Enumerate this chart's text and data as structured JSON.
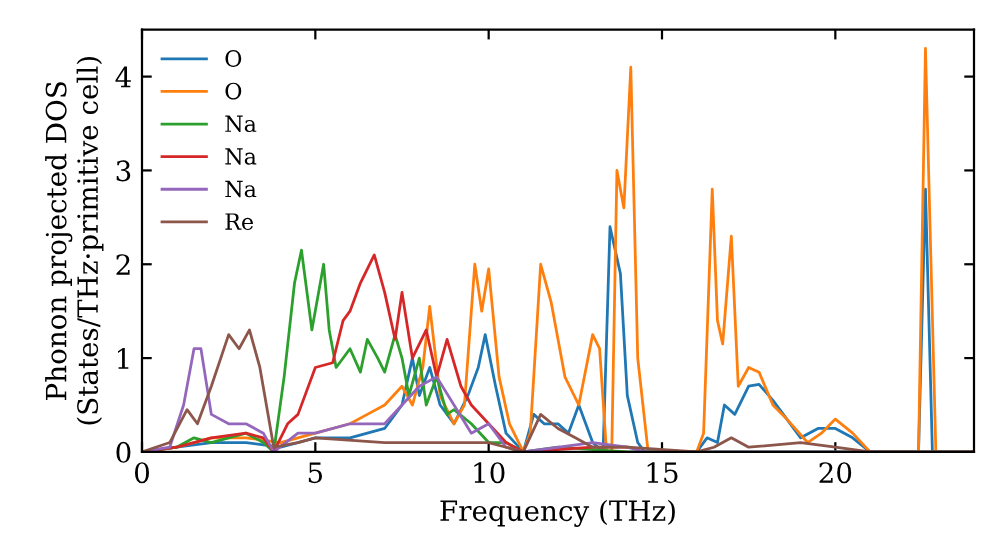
{
  "chart_data": {
    "type": "line",
    "xlabel": "Frequency (THz)",
    "ylabel": "Phonon projected DOS\n(States/THz·primitive cell)",
    "xlim": [
      0,
      24
    ],
    "ylim": [
      0,
      4.5
    ],
    "xticks": [
      0,
      5,
      10,
      15,
      20
    ],
    "yticks": [
      0,
      1,
      2,
      3,
      4
    ],
    "legend": "top left",
    "grid": false,
    "marker": "none",
    "line_style": "solid",
    "series": [
      {
        "name": "O",
        "color": "#1f77b4",
        "x": [
          0,
          1,
          2,
          3,
          4,
          5,
          6,
          6.5,
          7,
          7.5,
          7.8,
          8,
          8.3,
          8.6,
          9,
          9.4,
          9.7,
          9.9,
          10.2,
          10.5,
          11,
          11.3,
          11.6,
          12,
          12.3,
          12.6,
          13,
          13.3,
          13.5,
          13.8,
          14,
          14.3,
          14.5,
          16,
          16.3,
          16.6,
          16.8,
          17.1,
          17.5,
          17.8,
          18.2,
          18.6,
          19,
          19.5,
          20,
          20.5,
          21,
          22.4,
          22.6,
          22.8,
          24
        ],
        "values": [
          0,
          0.05,
          0.1,
          0.1,
          0.05,
          0.15,
          0.15,
          0.2,
          0.25,
          0.5,
          1.0,
          0.6,
          0.9,
          0.5,
          0.3,
          0.6,
          0.9,
          1.25,
          0.7,
          0.2,
          0,
          0.4,
          0.3,
          0.3,
          0.2,
          0.5,
          0.1,
          0,
          2.4,
          1.9,
          0.6,
          0.1,
          0,
          0,
          0.15,
          0.1,
          0.5,
          0.4,
          0.7,
          0.72,
          0.55,
          0.35,
          0.15,
          0.25,
          0.25,
          0.15,
          0,
          0,
          2.8,
          0,
          0
        ]
      },
      {
        "name": "O",
        "color": "#ff7f0e",
        "x": [
          0,
          1,
          2,
          3,
          4,
          5,
          6,
          6.5,
          7,
          7.5,
          7.8,
          8.1,
          8.3,
          8.6,
          9,
          9.3,
          9.6,
          9.8,
          10,
          10.3,
          10.6,
          11,
          11.2,
          11.5,
          11.8,
          12.2,
          12.6,
          13,
          13.2,
          13.4,
          13.55,
          13.7,
          13.9,
          14.1,
          14.3,
          14.6,
          16,
          16.2,
          16.45,
          16.6,
          16.75,
          17,
          17.2,
          17.5,
          17.8,
          18.2,
          18.6,
          19.2,
          19.6,
          20,
          20.5,
          21,
          22.4,
          22.6,
          22.9,
          24
        ],
        "values": [
          0,
          0.05,
          0.15,
          0.15,
          0.1,
          0.2,
          0.3,
          0.4,
          0.5,
          0.7,
          0.5,
          0.9,
          1.55,
          0.6,
          0.3,
          0.5,
          2.0,
          1.5,
          1.95,
          0.8,
          0.3,
          0,
          0.2,
          2.0,
          1.6,
          0.8,
          0.5,
          1.25,
          1.1,
          0,
          0,
          3.0,
          2.6,
          4.1,
          1.0,
          0,
          0,
          0.2,
          2.8,
          1.4,
          1.15,
          2.3,
          0.7,
          0.9,
          0.85,
          0.5,
          0.35,
          0.1,
          0.2,
          0.35,
          0.2,
          0,
          0,
          4.3,
          0,
          0
        ]
      },
      {
        "name": "Na",
        "color": "#2ca02c",
        "x": [
          0,
          1,
          1.5,
          2,
          2.5,
          3,
          3.5,
          3.8,
          4.1,
          4.4,
          4.6,
          4.9,
          5.24,
          5.4,
          5.6,
          6,
          6.3,
          6.5,
          6.8,
          7,
          7.3,
          7.5,
          7.7,
          8,
          8.2,
          8.5,
          8.8,
          9,
          9.5,
          10,
          10.5,
          11,
          12,
          14,
          24
        ],
        "values": [
          0,
          0.05,
          0.15,
          0.1,
          0.15,
          0.2,
          0.1,
          0,
          0.8,
          1.8,
          2.15,
          1.3,
          2.0,
          1.3,
          0.9,
          1.1,
          0.85,
          1.2,
          1.0,
          0.85,
          1.25,
          1.0,
          0.6,
          1.0,
          0.5,
          0.8,
          0.4,
          0.45,
          0.3,
          0.1,
          0.1,
          0,
          0.05,
          0,
          0
        ]
      },
      {
        "name": "Na",
        "color": "#d62728",
        "x": [
          0,
          1,
          2,
          3,
          3.5,
          3.8,
          4.2,
          4.5,
          5,
          5.5,
          5.8,
          6,
          6.3,
          6.7,
          7,
          7.3,
          7.5,
          7.8,
          8.2,
          8.5,
          8.8,
          9.2,
          9.5,
          10,
          10.5,
          11,
          13,
          14
        ],
        "values": [
          0,
          0.05,
          0.15,
          0.2,
          0.15,
          0,
          0.3,
          0.4,
          0.9,
          0.95,
          1.4,
          1.5,
          1.8,
          2.1,
          1.7,
          1.2,
          1.7,
          1.0,
          1.3,
          0.8,
          1.2,
          0.7,
          0.5,
          0.3,
          0.1,
          0,
          0.05,
          0.05
        ]
      },
      {
        "name": "Na",
        "color": "#9467bd",
        "x": [
          0,
          0.8,
          1.2,
          1.5,
          1.7,
          2,
          2.5,
          3,
          3.5,
          3.8,
          4.5,
          5,
          6,
          7,
          7.5,
          8,
          8.5,
          9,
          9.5,
          10,
          10.5,
          11,
          13,
          14,
          14.5,
          24
        ],
        "values": [
          0,
          0.05,
          0.5,
          1.1,
          1.1,
          0.4,
          0.3,
          0.3,
          0.2,
          0,
          0.2,
          0.2,
          0.3,
          0.3,
          0.5,
          0.7,
          0.8,
          0.5,
          0.2,
          0.3,
          0.05,
          0,
          0.1,
          0.05,
          0,
          0
        ]
      },
      {
        "name": "Re",
        "color": "#8c564b",
        "x": [
          0,
          0.8,
          1.3,
          1.6,
          2,
          2.5,
          2.8,
          3.1,
          3.4,
          3.8,
          4.5,
          5,
          7,
          10,
          10.5,
          11,
          11.5,
          12,
          12.5,
          13,
          14,
          16,
          16.5,
          17,
          17.5,
          19,
          20,
          21,
          24
        ],
        "values": [
          0,
          0.1,
          0.45,
          0.3,
          0.7,
          1.25,
          1.1,
          1.3,
          0.9,
          0.05,
          0.1,
          0.15,
          0.1,
          0.1,
          0.05,
          0,
          0.4,
          0.25,
          0.15,
          0.05,
          0.05,
          0,
          0.05,
          0.15,
          0.05,
          0.1,
          0.05,
          0,
          0
        ]
      }
    ]
  }
}
